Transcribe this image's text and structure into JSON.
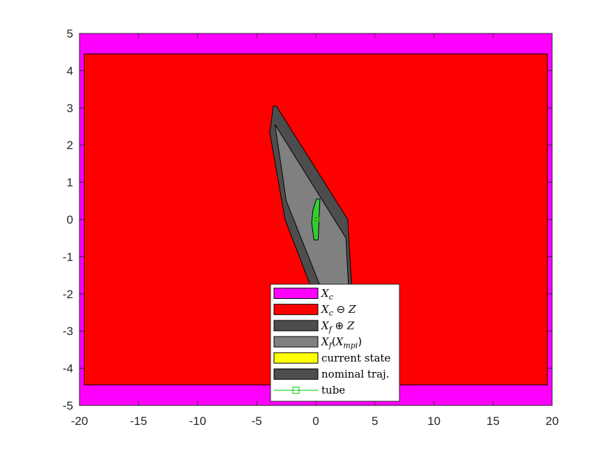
{
  "chart_data": {
    "type": "area",
    "title": "",
    "xlabel": "",
    "ylabel": "",
    "xlim": [
      -20,
      20
    ],
    "ylim": [
      -5,
      5
    ],
    "xticks": [
      -20,
      -15,
      -10,
      -5,
      0,
      5,
      10,
      15,
      20
    ],
    "yticks": [
      -5,
      -4,
      -3,
      -2,
      -1,
      0,
      1,
      2,
      3,
      4,
      5
    ],
    "legend_placement": "bottom-center",
    "sets": [
      {
        "id": "xc",
        "color": "#ff00ff",
        "polygon": [
          [
            -20,
            -5
          ],
          [
            20,
            -5
          ],
          [
            20,
            5
          ],
          [
            -20,
            5
          ]
        ]
      },
      {
        "id": "xc_minus_z",
        "color": "#ff0000",
        "polygon": [
          [
            -19.6,
            -4.45
          ],
          [
            19.6,
            -4.45
          ],
          [
            19.6,
            4.45
          ],
          [
            -19.6,
            4.45
          ]
        ]
      },
      {
        "id": "xf_plus_z",
        "color": "#4d4d4d",
        "polygon": [
          [
            -3.6,
            3.05
          ],
          [
            -3.35,
            3.05
          ],
          [
            2.7,
            0.0
          ],
          [
            3.6,
            -4.85
          ],
          [
            3.25,
            -4.85
          ],
          [
            -2.6,
            0.0
          ],
          [
            -3.9,
            2.35
          ],
          [
            -3.8,
            2.55
          ]
        ]
      },
      {
        "id": "xf_mpi",
        "color": "#808080",
        "polygon": [
          [
            -3.45,
            2.55
          ],
          [
            2.55,
            -0.5
          ],
          [
            3.15,
            -4.0
          ],
          [
            -2.5,
            0.5
          ]
        ]
      },
      {
        "id": "tube",
        "color": "#33cc33",
        "polygon": [
          [
            0.05,
            0.55
          ],
          [
            0.35,
            0.55
          ],
          [
            0.2,
            -0.55
          ],
          [
            -0.15,
            -0.55
          ],
          [
            -0.35,
            -0.1
          ],
          [
            -0.25,
            0.25
          ]
        ]
      }
    ],
    "current_state": {
      "x": 0.1,
      "y": 0.0,
      "color": "#ffff00"
    },
    "nominal_traj": {
      "x": [
        0.1
      ],
      "y": [
        0.0
      ],
      "color": "#4d4d4d"
    },
    "tube_marker": {
      "x": 0.1,
      "y": 0.0,
      "color": "#00cc00"
    },
    "legend": [
      {
        "label": "X",
        "sub": "c",
        "op": "",
        "label2": "",
        "sub2": "",
        "tail": "",
        "swatch": "#ff00ff",
        "kind": "patch"
      },
      {
        "label": "X",
        "sub": "c",
        "op": "⊖",
        "label2": "Z",
        "sub2": "",
        "tail": "",
        "swatch": "#ff0000",
        "kind": "patch"
      },
      {
        "label": "X",
        "sub": "f",
        "op": "⊕",
        "label2": "Z",
        "sub2": "",
        "tail": "",
        "swatch": "#4d4d4d",
        "kind": "patch"
      },
      {
        "label": "X",
        "sub": "f",
        "op": "(",
        "label2": "X",
        "sub2": "mpi",
        "tail": ")",
        "swatch": "#808080",
        "kind": "patch"
      },
      {
        "text": "current state",
        "swatch": "#ffff00",
        "kind": "patch"
      },
      {
        "text": "nominal traj.",
        "swatch": "#4d4d4d",
        "kind": "patch"
      },
      {
        "text": "tube",
        "swatch": "#00cc00",
        "kind": "line"
      }
    ]
  }
}
